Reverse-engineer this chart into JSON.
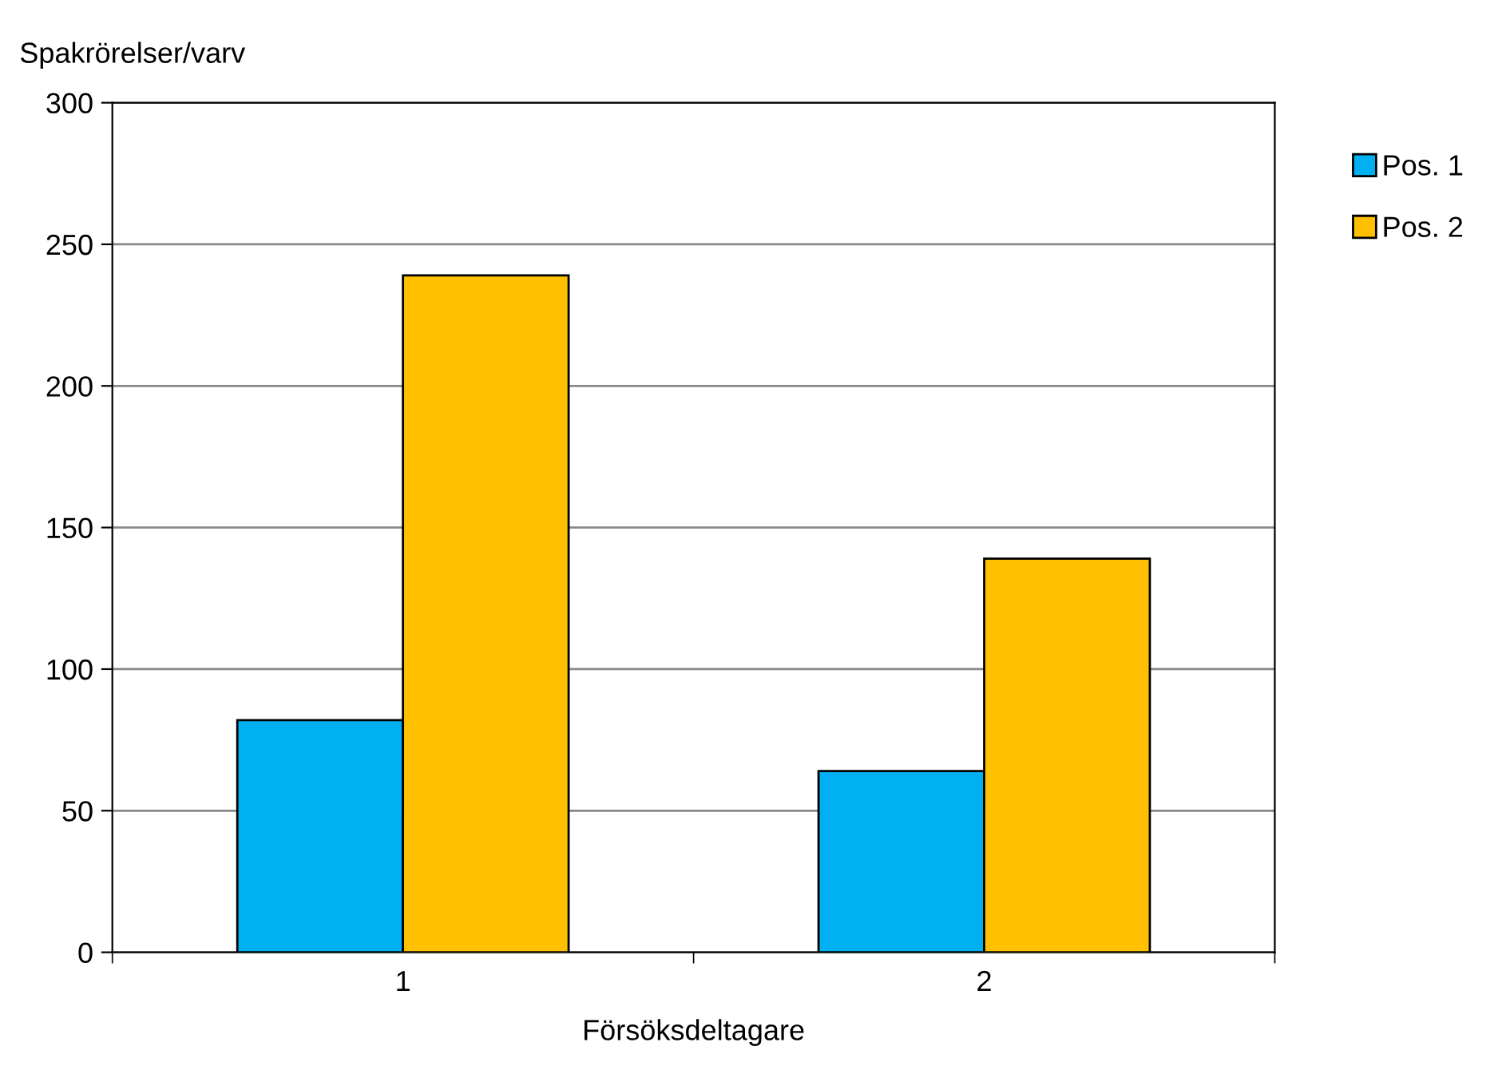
{
  "chart_data": {
    "type": "bar",
    "ylabel": "Spakrörelser/varv",
    "xlabel": "Försöksdeltagare",
    "categories": [
      "1",
      "2"
    ],
    "series": [
      {
        "name": "Pos. 1",
        "color": "#00b0f0",
        "values": [
          82,
          64
        ]
      },
      {
        "name": "Pos. 2",
        "color": "#ffc000",
        "values": [
          239,
          139
        ]
      }
    ],
    "ylim": [
      0,
      300
    ],
    "yticks": [
      0,
      50,
      100,
      150,
      200,
      250,
      300
    ],
    "grid": "y",
    "legend": "right"
  }
}
